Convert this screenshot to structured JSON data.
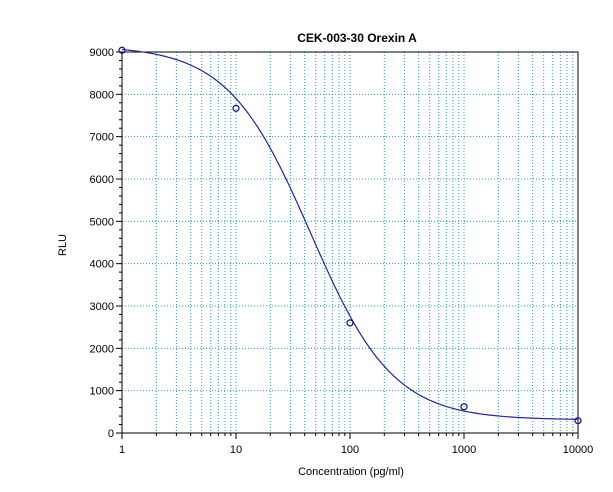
{
  "chart_data": {
    "type": "scatter",
    "title": "CEK-003-30 Orexin A",
    "xlabel": "Concentration (pg/ml)",
    "ylabel": "RLU",
    "x_scale": "log",
    "xlim": [
      1,
      10000
    ],
    "ylim": [
      0,
      9000
    ],
    "x_ticks": [
      1,
      10,
      100,
      1000,
      10000
    ],
    "x_tick_labels": [
      "1",
      "10",
      "100",
      "1000",
      "10000"
    ],
    "y_ticks": [
      0,
      1000,
      2000,
      3000,
      4000,
      5000,
      6000,
      7000,
      8000,
      9000
    ],
    "y_tick_labels": [
      "0",
      "1000",
      "2000",
      "3000",
      "4000",
      "5000",
      "6000",
      "7000",
      "8000",
      "9000"
    ],
    "grid": true,
    "series": [
      {
        "points": [
          {
            "x": 1,
            "y": 9040
          },
          {
            "x": 10,
            "y": 7670
          },
          {
            "x": 100,
            "y": 2600
          },
          {
            "x": 1000,
            "y": 620
          },
          {
            "x": 10000,
            "y": 290
          }
        ],
        "fit": {
          "model": "4PL",
          "top": 9150,
          "bottom": 310,
          "ec50": 45,
          "hill": 1.2
        }
      }
    ],
    "colors": {
      "curve": "#2222aa",
      "markers": "#1a1a8c",
      "grid": "#2a9fb5",
      "axis": "#000000"
    }
  }
}
